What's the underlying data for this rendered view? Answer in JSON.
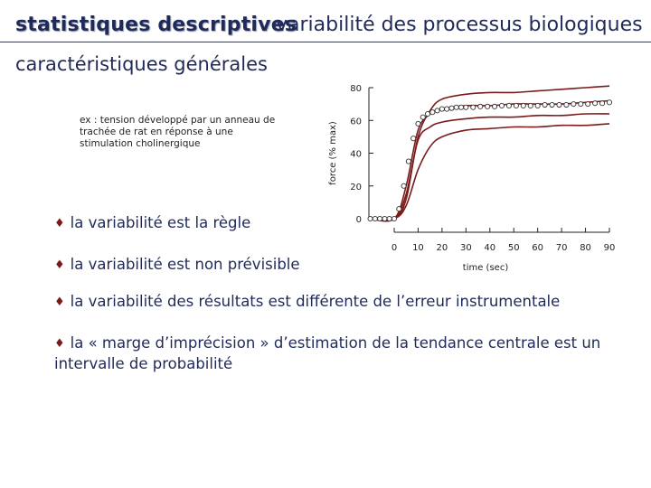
{
  "header": {
    "title": "statistiques descriptives",
    "subtitle": "variabilité des processus biologiques"
  },
  "section_title": "caractéristiques générales",
  "note": "ex : tension développé par un anneau de trachée de rat en réponse à une stimulation cholinergique",
  "bullets": {
    "marker": "♦",
    "b1": "la variabilité est la règle",
    "b2": "la variabilité est non prévisible",
    "b3": "la variabilité des résultats est différente de l’erreur instrumentale",
    "b4": "la « marge d’imprécision » d’estimation de la tendance centrale est un intervalle de probabilité"
  },
  "colors": {
    "curve": "#7a1a1a",
    "text": "#1f2a5a"
  },
  "chart_data": {
    "type": "line",
    "xlabel": "time (sec)",
    "ylabel": "force (% max)",
    "xlim": [
      -10,
      90
    ],
    "ylim": [
      0,
      80
    ],
    "xticks": [
      0,
      10,
      20,
      30,
      40,
      50,
      60,
      70,
      80,
      90
    ],
    "yticks": [
      0,
      20,
      40,
      60,
      80
    ],
    "series": [
      {
        "role": "upper",
        "x": [
          -10,
          0,
          5,
          10,
          15,
          20,
          30,
          40,
          50,
          60,
          70,
          80,
          90
        ],
        "y": [
          0,
          0,
          12,
          50,
          66,
          73,
          76,
          77,
          77,
          78,
          79,
          80,
          81
        ]
      },
      {
        "role": "upper-inner",
        "x": [
          -10,
          0,
          5,
          10,
          15,
          20,
          30,
          40,
          50,
          60,
          70,
          80,
          90
        ],
        "y": [
          0,
          0,
          20,
          54,
          64,
          67,
          69,
          69,
          70,
          70,
          70,
          71,
          72
        ]
      },
      {
        "role": "lower-inner",
        "x": [
          -10,
          0,
          5,
          10,
          15,
          20,
          30,
          40,
          50,
          60,
          70,
          80,
          90
        ],
        "y": [
          0,
          0,
          15,
          48,
          56,
          59,
          61,
          62,
          62,
          63,
          63,
          64,
          64
        ]
      },
      {
        "role": "lower",
        "x": [
          -10,
          0,
          5,
          10,
          15,
          20,
          30,
          40,
          50,
          60,
          70,
          80,
          90
        ],
        "y": [
          0,
          0,
          8,
          30,
          44,
          50,
          54,
          55,
          56,
          56,
          57,
          57,
          58
        ]
      }
    ],
    "markers": {
      "x": [
        -10,
        -8,
        -6,
        -4,
        -2,
        0,
        2,
        4,
        6,
        8,
        10,
        12,
        14,
        16,
        18,
        20,
        22,
        24,
        26,
        28,
        30,
        33,
        36,
        39,
        42,
        45,
        48,
        51,
        54,
        57,
        60,
        63,
        66,
        69,
        72,
        75,
        78,
        81,
        84,
        87,
        90
      ],
      "y": [
        0,
        0,
        0,
        0,
        0,
        0,
        6,
        20,
        35,
        49,
        58,
        62,
        64,
        65,
        66,
        67,
        67,
        67.5,
        68,
        68,
        68,
        68,
        68.5,
        68.5,
        68.5,
        69,
        69,
        69,
        69,
        69,
        69,
        69.5,
        69.5,
        69.5,
        69.5,
        70,
        70,
        70,
        70.5,
        70.5,
        71
      ]
    }
  }
}
